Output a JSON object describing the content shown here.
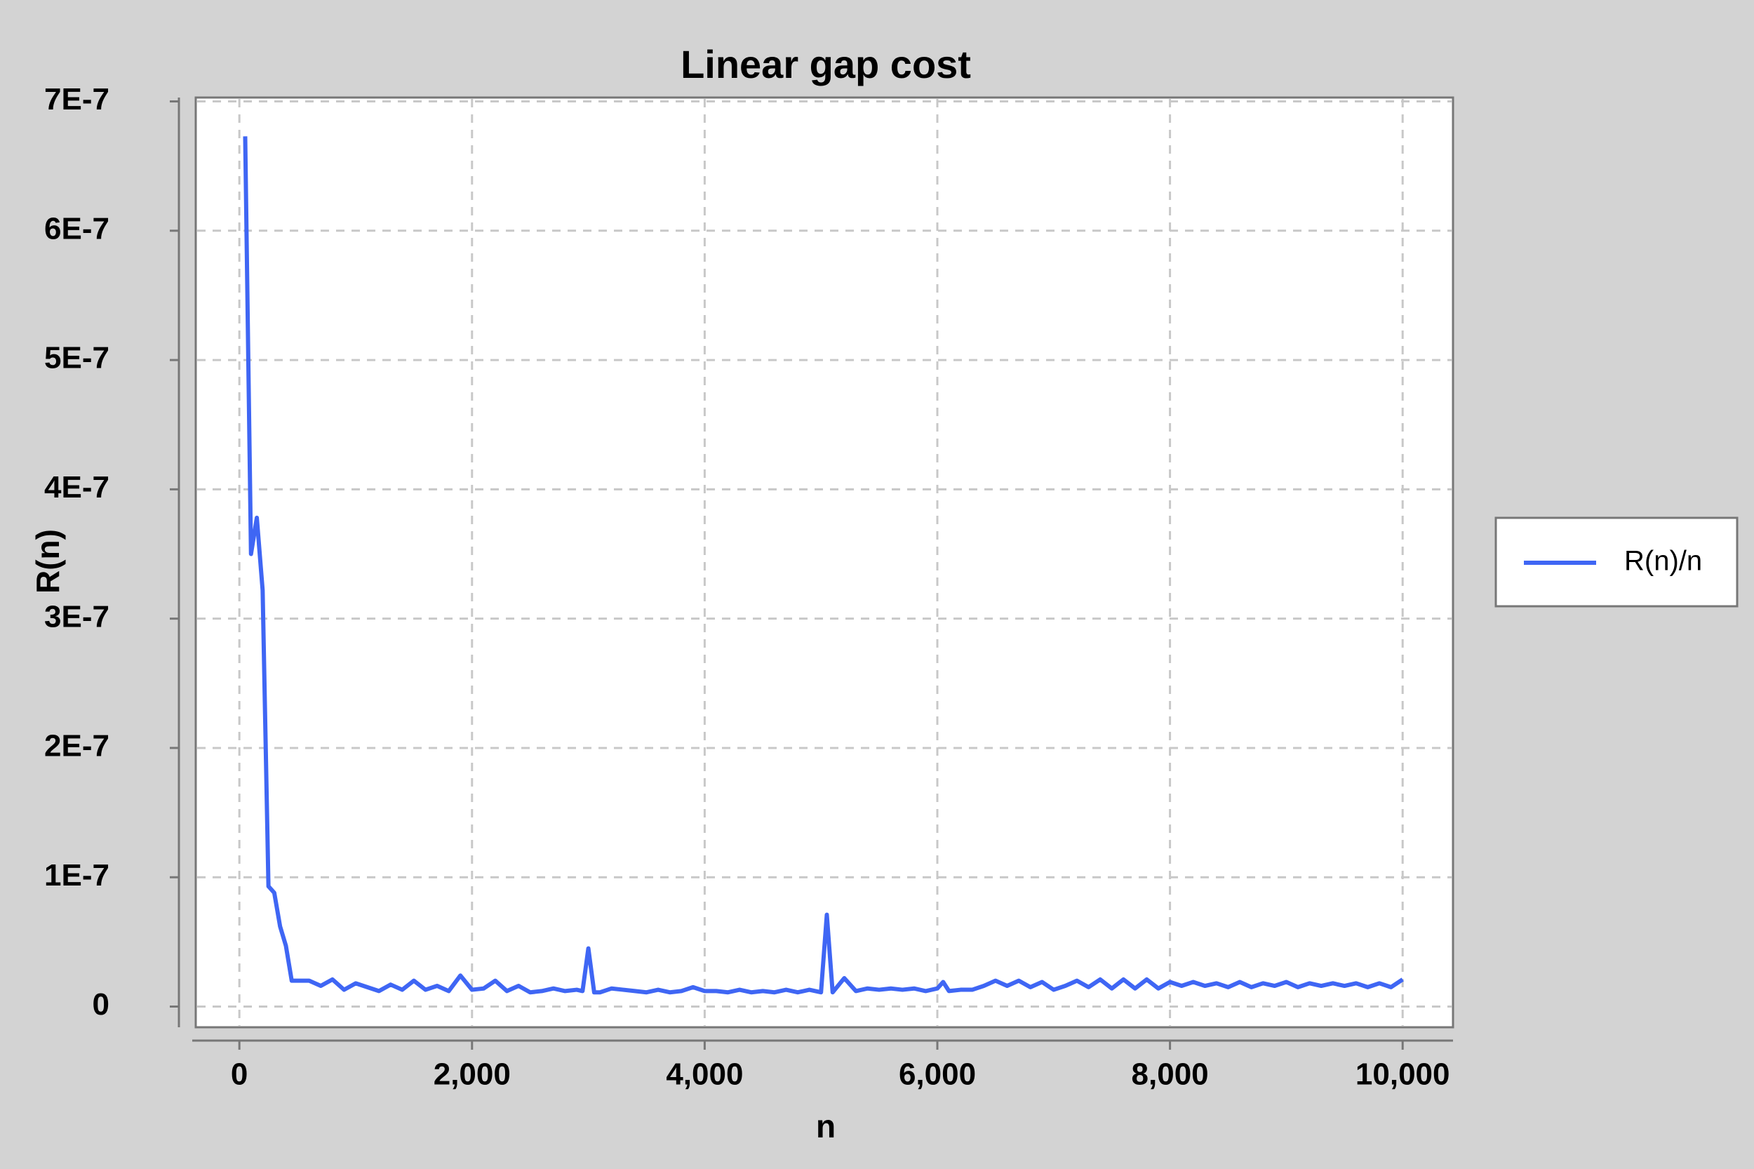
{
  "chart_data": {
    "type": "line",
    "title": "Linear gap cost",
    "x_label": "n",
    "y_label": "R(n)",
    "grid": true,
    "legend": "right",
    "xlim": [
      -375,
      10433
    ],
    "ylim": [
      -1.6e-08,
      7.03e-07
    ],
    "xticks": [
      0,
      {
        "value": 2000,
        "label": "2,000"
      },
      {
        "value": 4000,
        "label": "4,000"
      },
      {
        "value": 6000,
        "label": "6,000"
      },
      {
        "value": 8000,
        "label": "8,000"
      },
      {
        "value": 10000,
        "label": "10,000"
      }
    ],
    "yticks": [
      0,
      {
        "value": 1e-07,
        "label": "1E-7"
      },
      {
        "value": 2e-07,
        "label": "2E-7"
      },
      {
        "value": 3e-07,
        "label": "3E-7"
      },
      {
        "value": 4e-07,
        "label": "4E-7"
      },
      {
        "value": 5e-07,
        "label": "5E-7"
      },
      {
        "value": 6e-07,
        "label": "6E-7"
      },
      {
        "value": 7e-07,
        "label": "7E-7"
      }
    ],
    "x": [
      50,
      100,
      150,
      200,
      250,
      300,
      350,
      400,
      450,
      500,
      600,
      700,
      800,
      900,
      1000,
      1100,
      1200,
      1300,
      1400,
      1500,
      1600,
      1700,
      1800,
      1900,
      2000,
      2100,
      2200,
      2300,
      2400,
      2500,
      2600,
      2700,
      2800,
      2900,
      2950,
      3000,
      3050,
      3100,
      3200,
      3300,
      3400,
      3500,
      3600,
      3700,
      3800,
      3900,
      4000,
      4100,
      4200,
      4300,
      4400,
      4500,
      4600,
      4700,
      4800,
      4900,
      5000,
      5050,
      5100,
      5200,
      5300,
      5400,
      5500,
      5600,
      5700,
      5800,
      5900,
      6000,
      6050,
      6100,
      6200,
      6300,
      6400,
      6500,
      6600,
      6700,
      6800,
      6900,
      7000,
      7100,
      7200,
      7300,
      7400,
      7500,
      7600,
      7700,
      7800,
      7900,
      8000,
      8100,
      8200,
      8300,
      8400,
      8500,
      8600,
      8700,
      8800,
      8900,
      9000,
      9100,
      9200,
      9300,
      9400,
      9500,
      9600,
      9700,
      9800,
      9900,
      10000
    ],
    "series": [
      {
        "name": "R(n)/n",
        "color": "#3f66f4",
        "values": [
          6.73e-07,
          3.5e-07,
          3.78e-07,
          3.22e-07,
          9.3e-08,
          8.8e-08,
          6.2e-08,
          4.7e-08,
          2e-08,
          2e-08,
          2e-08,
          1.6e-08,
          2.1e-08,
          1.3e-08,
          1.8e-08,
          1.5e-08,
          1.2e-08,
          1.7e-08,
          1.3e-08,
          2e-08,
          1.3e-08,
          1.6e-08,
          1.2e-08,
          2.4e-08,
          1.3e-08,
          1.4e-08,
          2e-08,
          1.2e-08,
          1.6e-08,
          1.1e-08,
          1.2e-08,
          1.4e-08,
          1.2e-08,
          1.3e-08,
          1.2e-08,
          4.5e-08,
          1.1e-08,
          1.1e-08,
          1.4e-08,
          1.3e-08,
          1.2e-08,
          1.1e-08,
          1.3e-08,
          1.1e-08,
          1.2e-08,
          1.5e-08,
          1.2e-08,
          1.2e-08,
          1.1e-08,
          1.3e-08,
          1.1e-08,
          1.2e-08,
          1.1e-08,
          1.3e-08,
          1.1e-08,
          1.3e-08,
          1.1e-08,
          7.1e-08,
          1.1e-08,
          2.2e-08,
          1.2e-08,
          1.4e-08,
          1.3e-08,
          1.4e-08,
          1.3e-08,
          1.4e-08,
          1.2e-08,
          1.4e-08,
          1.9e-08,
          1.2e-08,
          1.3e-08,
          1.3e-08,
          1.6e-08,
          2e-08,
          1.6e-08,
          2e-08,
          1.5e-08,
          1.9e-08,
          1.3e-08,
          1.6e-08,
          2e-08,
          1.5e-08,
          2.1e-08,
          1.4e-08,
          2.1e-08,
          1.4e-08,
          2.1e-08,
          1.4e-08,
          1.9e-08,
          1.6e-08,
          1.9e-08,
          1.6e-08,
          1.8e-08,
          1.5e-08,
          1.9e-08,
          1.5e-08,
          1.8e-08,
          1.6e-08,
          1.9e-08,
          1.5e-08,
          1.8e-08,
          1.6e-08,
          1.8e-08,
          1.6e-08,
          1.8e-08,
          1.5e-08,
          1.8e-08,
          1.5e-08,
          2.1e-08
        ]
      }
    ]
  }
}
